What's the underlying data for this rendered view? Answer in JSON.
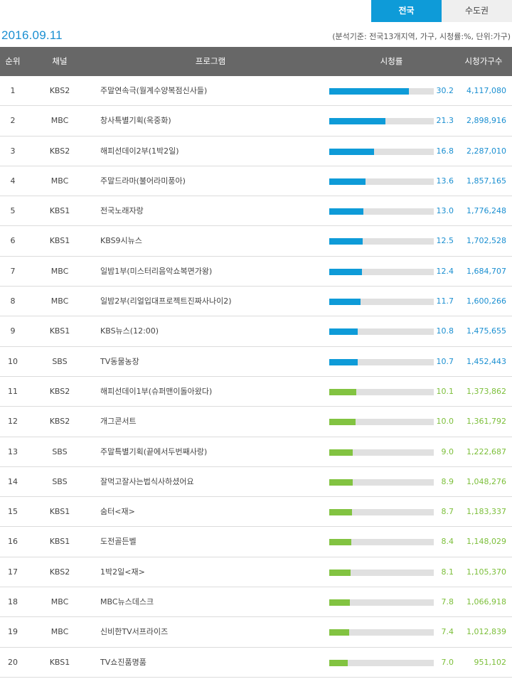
{
  "tabs": [
    {
      "label": "전국",
      "active": true
    },
    {
      "label": "수도권",
      "active": false
    }
  ],
  "date": "2016.09.11",
  "criteria": "(분석기준: 전국13개지역, 가구, 시청률:%, 단위:가구)",
  "headers": {
    "rank": "순위",
    "channel": "채널",
    "program": "프로그램",
    "rating": "시청률",
    "households": "시청가구수"
  },
  "colors": {
    "blue": "#0e9bd8",
    "green": "#82c341",
    "header_bg": "#676767"
  },
  "bar_max": 39.5,
  "rows": [
    {
      "rank": "1",
      "channel": "KBS2",
      "program": "주말연속극(월계수양복점신사들)",
      "rating": "30.2",
      "value": 30.2,
      "households": "4,117,080",
      "color": "blue"
    },
    {
      "rank": "2",
      "channel": "MBC",
      "program": "창사특별기획(옥중화)",
      "rating": "21.3",
      "value": 21.3,
      "households": "2,898,916",
      "color": "blue"
    },
    {
      "rank": "3",
      "channel": "KBS2",
      "program": "해피선데이2부(1박2일)",
      "rating": "16.8",
      "value": 16.8,
      "households": "2,287,010",
      "color": "blue"
    },
    {
      "rank": "4",
      "channel": "MBC",
      "program": "주말드라마(불어라미풍아)",
      "rating": "13.6",
      "value": 13.6,
      "households": "1,857,165",
      "color": "blue"
    },
    {
      "rank": "5",
      "channel": "KBS1",
      "program": "전국노래자랑",
      "rating": "13.0",
      "value": 13.0,
      "households": "1,776,248",
      "color": "blue"
    },
    {
      "rank": "6",
      "channel": "KBS1",
      "program": "KBS9시뉴스",
      "rating": "12.5",
      "value": 12.5,
      "households": "1,702,528",
      "color": "blue"
    },
    {
      "rank": "7",
      "channel": "MBC",
      "program": "일밤1부(미스터리음악쇼복면가왕)",
      "rating": "12.4",
      "value": 12.4,
      "households": "1,684,707",
      "color": "blue"
    },
    {
      "rank": "8",
      "channel": "MBC",
      "program": "일밤2부(리얼입대프로젝트진짜사나이2)",
      "rating": "11.7",
      "value": 11.7,
      "households": "1,600,266",
      "color": "blue"
    },
    {
      "rank": "9",
      "channel": "KBS1",
      "program": "KBS뉴스(12:00)",
      "rating": "10.8",
      "value": 10.8,
      "households": "1,475,655",
      "color": "blue"
    },
    {
      "rank": "10",
      "channel": "SBS",
      "program": "TV동물농장",
      "rating": "10.7",
      "value": 10.7,
      "households": "1,452,443",
      "color": "blue"
    },
    {
      "rank": "11",
      "channel": "KBS2",
      "program": "해피선데이1부(슈퍼맨이돌아왔다)",
      "rating": "10.1",
      "value": 10.1,
      "households": "1,373,862",
      "color": "green"
    },
    {
      "rank": "12",
      "channel": "KBS2",
      "program": "개그콘서트",
      "rating": "10.0",
      "value": 10.0,
      "households": "1,361,792",
      "color": "green"
    },
    {
      "rank": "13",
      "channel": "SBS",
      "program": "주말특별기획(끝에서두번째사랑)",
      "rating": "9.0",
      "value": 9.0,
      "households": "1,222,687",
      "color": "green"
    },
    {
      "rank": "14",
      "channel": "SBS",
      "program": "잘먹고잘사는법식사하셨어요",
      "rating": "8.9",
      "value": 8.9,
      "households": "1,048,276",
      "color": "green"
    },
    {
      "rank": "15",
      "channel": "KBS1",
      "program": "숨터<재>",
      "rating": "8.7",
      "value": 8.7,
      "households": "1,183,337",
      "color": "green"
    },
    {
      "rank": "16",
      "channel": "KBS1",
      "program": "도전골든벨",
      "rating": "8.4",
      "value": 8.4,
      "households": "1,148,029",
      "color": "green"
    },
    {
      "rank": "17",
      "channel": "KBS2",
      "program": "1박2일<재>",
      "rating": "8.1",
      "value": 8.1,
      "households": "1,105,370",
      "color": "green"
    },
    {
      "rank": "18",
      "channel": "MBC",
      "program": "MBC뉴스데스크",
      "rating": "7.8",
      "value": 7.8,
      "households": "1,066,918",
      "color": "green"
    },
    {
      "rank": "19",
      "channel": "MBC",
      "program": "신비한TV서프라이즈",
      "rating": "7.4",
      "value": 7.4,
      "households": "1,012,839",
      "color": "green"
    },
    {
      "rank": "20",
      "channel": "KBS1",
      "program": "TV쇼진품명품",
      "rating": "7.0",
      "value": 7.0,
      "households": "951,102",
      "color": "green"
    }
  ]
}
